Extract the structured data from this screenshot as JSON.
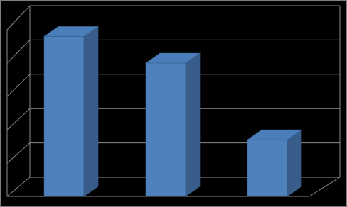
{
  "chart_data": {
    "type": "bar3d",
    "values": [
      96,
      80,
      34
    ],
    "color": "#4f81bd",
    "side_color": "#385d8a",
    "top_color": "#4a7ebb",
    "ylim": [
      0,
      100
    ],
    "yticks": [
      0,
      20,
      40,
      60,
      80,
      100
    ],
    "grid": true
  }
}
